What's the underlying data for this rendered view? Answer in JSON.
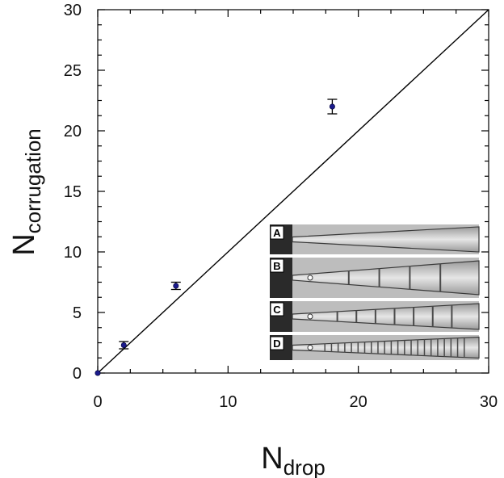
{
  "chart_data": {
    "type": "scatter",
    "xlabel": {
      "main": "N",
      "sub": "drop"
    },
    "ylabel": {
      "main": "N",
      "sub": "corrugation"
    },
    "xlim": [
      0,
      30
    ],
    "ylim": [
      0,
      30
    ],
    "x_ticks": [
      "0",
      "10",
      "20",
      "30"
    ],
    "y_ticks": [
      "0",
      "5",
      "10",
      "15",
      "20",
      "25",
      "30"
    ],
    "grid": false,
    "series": [
      {
        "marker": "circle",
        "color": "#1a1a8c",
        "points": [
          {
            "x": 0,
            "y": 0,
            "err": 0
          },
          {
            "x": 2,
            "y": 2.3,
            "err": 0.3
          },
          {
            "x": 6,
            "y": 7.2,
            "err": 0.3
          },
          {
            "x": 18,
            "y": 22,
            "err": 0.6
          }
        ]
      }
    ],
    "reference_line": {
      "from": [
        0,
        0
      ],
      "to": [
        30,
        30
      ],
      "color": "#000000"
    },
    "inset_panels": [
      "A",
      "B",
      "C",
      "D"
    ]
  }
}
